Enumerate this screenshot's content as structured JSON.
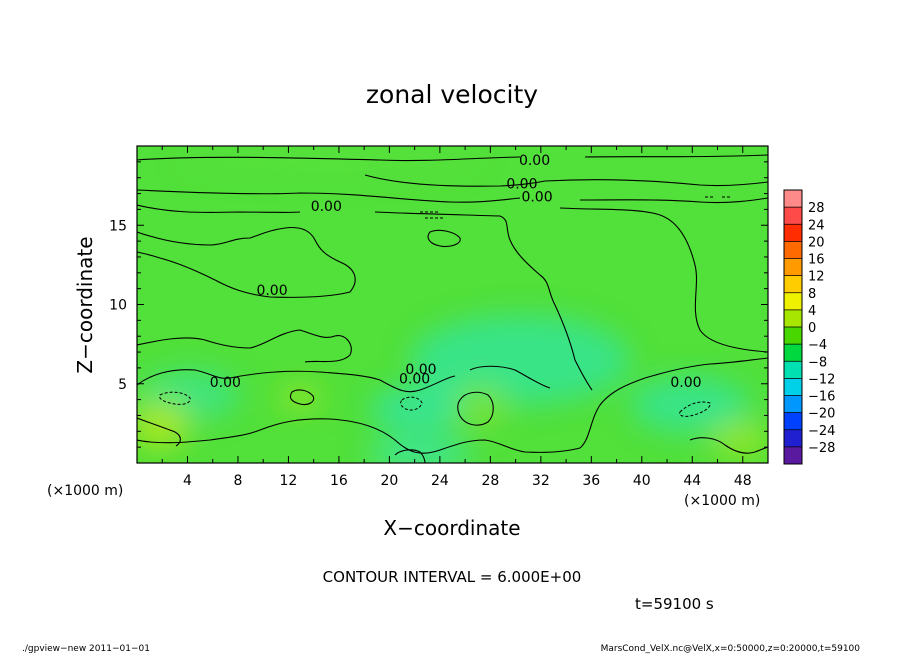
{
  "chart_data": {
    "type": "heatmap",
    "title": "zonal velocity",
    "xlabel": "X−coordinate",
    "ylabel": "Z−coordinate",
    "x_unit": "(×1000 m)",
    "y_unit": "(×1000 m)",
    "xlim": [
      0,
      50
    ],
    "ylim": [
      0,
      20
    ],
    "x_ticks": [
      4,
      8,
      12,
      16,
      20,
      24,
      28,
      32,
      36,
      40,
      44,
      48
    ],
    "y_ticks": [
      5,
      10,
      15
    ],
    "contour_interval_text": "CONTOUR INTERVAL = 6.000E+00",
    "time_text": "t=59100 s",
    "colorbar": {
      "levels": [
        28,
        24,
        20,
        16,
        12,
        8,
        4,
        0,
        -4,
        -8,
        -12,
        -16,
        -20,
        -24,
        -28
      ],
      "level_labels": [
        "28",
        "24",
        "20",
        "16",
        "12",
        "8",
        "4",
        "0",
        "−4",
        "−8",
        "−12",
        "−16",
        "−20",
        "−24",
        "−28"
      ],
      "colors": [
        "#ff8a8a",
        "#ff4a4a",
        "#ff2d00",
        "#ff6a00",
        "#ff9a00",
        "#ffcc00",
        "#eef200",
        "#a6e600",
        "#48d800",
        "#00d840",
        "#00e0b0",
        "#00d0e8",
        "#0098ff",
        "#0040ff",
        "#2020d0",
        "#5a1aa0"
      ]
    },
    "contour_labels": [
      {
        "text": "0.00",
        "x": 31.5,
        "z": 19.0
      },
      {
        "text": "0.00",
        "x": 30.5,
        "z": 17.5
      },
      {
        "text": "0.00",
        "x": 31.7,
        "z": 16.7
      },
      {
        "text": "0.00",
        "x": 15.0,
        "z": 16.1
      },
      {
        "text": "0.00",
        "x": 10.7,
        "z": 10.8
      },
      {
        "text": "0.00",
        "x": 7.0,
        "z": 5.0
      },
      {
        "text": "0.00",
        "x": 22.5,
        "z": 5.8
      },
      {
        "text": "0.00",
        "x": 22.0,
        "z": 5.2
      },
      {
        "text": "0.00",
        "x": 43.5,
        "z": 5.0
      }
    ]
  },
  "footer": {
    "left": "./gpview−new   2011−01−01",
    "right": "MarsCond_VelX.nc@VelX,x=0:50000,z=0:20000,t=59100"
  },
  "colors": {
    "field_base": "#52e03a",
    "field_cyan": "#22e6a0",
    "field_yellow": "#b8e81a"
  }
}
